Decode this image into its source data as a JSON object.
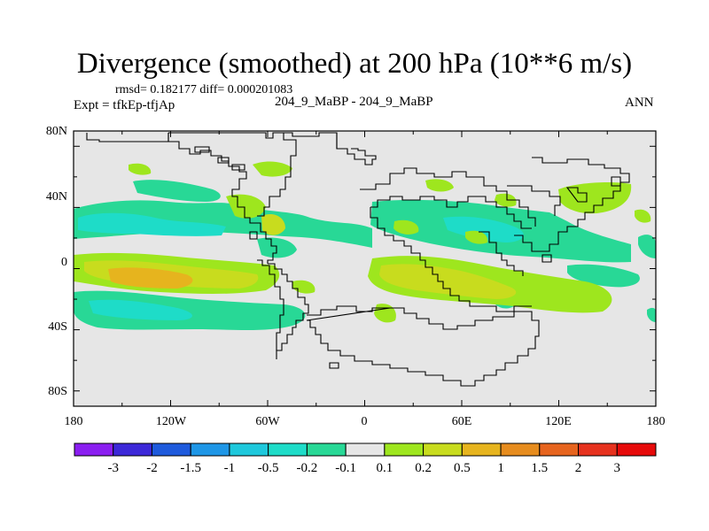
{
  "title": "Divergence (smoothed) at 200 hPa (10**6 m/s)",
  "stats_line": "rmsd= 0.182177 diff= 0.000201083",
  "expt_label": "Expt = tfkEp-tfjAp",
  "case_label": "204_9_MaBP - 204_9_MaBP",
  "season_label": "ANN",
  "lat_ticks": [
    "80N",
    "40N",
    "0",
    "40S",
    "80S"
  ],
  "lon_ticks": [
    "180",
    "120W",
    "60W",
    "0",
    "60E",
    "120E",
    "180"
  ],
  "colorbar": {
    "labels": [
      "-3",
      "-2",
      "-1.5",
      "-1",
      "-0.5",
      "-0.2",
      "-0.1",
      "0.1",
      "0.2",
      "0.5",
      "1",
      "1.5",
      "2",
      "3"
    ],
    "colors": [
      "#8a1ef0",
      "#3c28d8",
      "#1e5adc",
      "#1e96e6",
      "#1ec8dc",
      "#1edcc8",
      "#28d896",
      "#e6e6e6",
      "#9ee61e",
      "#c8dc1e",
      "#e6b41e",
      "#e68c1e",
      "#e6641e",
      "#e6321e",
      "#e60a0a"
    ]
  },
  "colors": {
    "background_neutral": "#e6e6e6",
    "positive_weak": "#9ee61e",
    "positive_mid": "#c8dc1e",
    "positive_strong": "#e6b41e",
    "negative_weak": "#28d896",
    "negative_mid": "#1edcc8",
    "negative_strong": "#1ec8dc"
  }
}
